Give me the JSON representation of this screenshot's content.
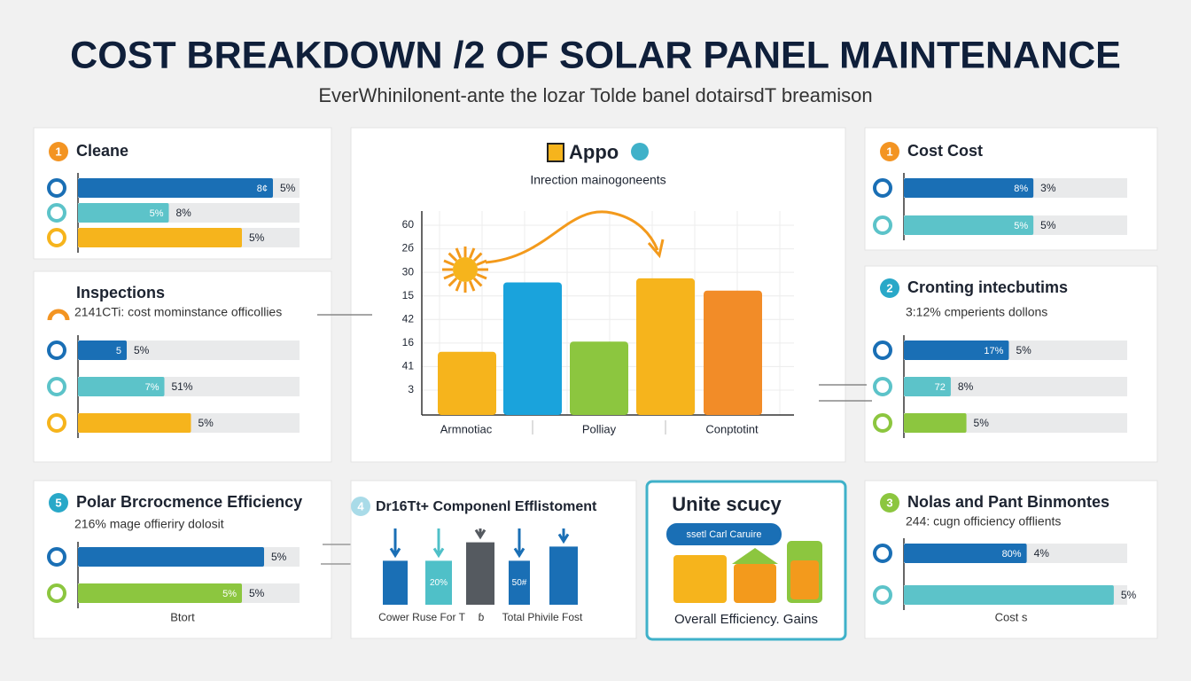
{
  "title": "COST BREAKDOWN /2 OF SOLAR PANEL MAINTENANCE",
  "subtitle": "EverWhinilonent-ante the lozar Tolde banel dotairsdT breamison",
  "panels": [
    {
      "badge": "1",
      "badge_color": "#f39422",
      "title": "Cleane",
      "bars": [
        {
          "value": 88,
          "color": "#1a6fb5",
          "inner": "8¢",
          "label": "5%"
        },
        {
          "value": 41,
          "color": "#5cc3c9",
          "inner": "5%",
          "label": "8%"
        },
        {
          "value": 74,
          "color": "#f6b41c",
          "label": "5%"
        }
      ]
    },
    {
      "title": "Inspections",
      "subtitle": "2141CTi: cost mominstance officollies",
      "bars": [
        {
          "value": 22,
          "color": "#1a6fb5",
          "inner": "5",
          "label": "5%"
        },
        {
          "value": 39,
          "color": "#5cc3c9",
          "inner": "7%",
          "label": "51%"
        },
        {
          "value": 51,
          "color": "#f6b41c",
          "label": "5%"
        }
      ]
    },
    {
      "badge": "5",
      "badge_color": "#29a8c8",
      "title": "Polar Brcrocmence Efficiency",
      "subtitle": "216% mage offieriry dolosit",
      "bars": [
        {
          "value": 84,
          "color": "#1a6fb5",
          "label": "5%"
        },
        {
          "value": 74,
          "color": "#8cc63f",
          "inner": "5%",
          "label": "5%"
        }
      ],
      "footer": "Btort"
    },
    {
      "badge": "1",
      "badge_color": "#f39422",
      "title": "Cost Cost",
      "bars": [
        {
          "value": 58,
          "color": "#1a6fb5",
          "inner": "8%",
          "label": "3%"
        },
        {
          "value": 58,
          "color": "#5cc3c9",
          "inner": "5%",
          "label": "5%"
        }
      ]
    },
    {
      "badge": "2",
      "badge_color": "#29a8c8",
      "title": "Cronting intecbutims",
      "subtitle": "3:12% cmperients dollons",
      "bars": [
        {
          "value": 47,
          "color": "#1a6fb5",
          "inner": "17%",
          "label": "5%"
        },
        {
          "value": 21,
          "color": "#5cc3c9",
          "inner": "72",
          "label": "8%"
        },
        {
          "value": 28,
          "color": "#8cc63f",
          "label": "5%"
        }
      ]
    },
    {
      "badge": "3",
      "badge_color": "#8cc63f",
      "title": "Nolas and Pant Binmontes",
      "subtitle": "244: cugn officiency offlients",
      "bars": [
        {
          "value": 55,
          "color": "#1a6fb5",
          "inner": "80%",
          "label": "4%"
        },
        {
          "value": 94,
          "color": "#5cc3c9",
          "label": "5%"
        }
      ],
      "footer": "Cost s"
    }
  ],
  "chart": {
    "title": "Appo",
    "subtitle": "Inrection mainogoneents",
    "axis_labels": [
      "60",
      "2б",
      "30",
      "15",
      "42",
      "16",
      "41",
      "3"
    ],
    "categories": [
      "Armnotiac",
      "Polliay",
      "Conptotint"
    ],
    "bars": [
      {
        "value": 31,
        "color": "#f6b41c"
      },
      {
        "value": 65,
        "color": "#1aa3dc"
      },
      {
        "value": 36,
        "color": "#8cc63f"
      },
      {
        "value": 67,
        "color": "#f6b41c"
      },
      {
        "value": 61,
        "color": "#f28c28"
      }
    ]
  },
  "components": {
    "badge": "4",
    "title": "Dr16Tt+ Componenl Efflistoment",
    "bars": [
      {
        "value": 62,
        "color": "#1a6fb5"
      },
      {
        "value": 62,
        "color": "#4fc0c8",
        "inner": "20%"
      },
      {
        "value": 88,
        "color": "#555a60"
      },
      {
        "value": 62,
        "color": "#1a6fb5",
        "inner": "50#"
      },
      {
        "value": 82,
        "color": "#1a6fb5"
      }
    ],
    "labels": [
      "Cower Ruse For T",
      "ɓ",
      "Total Phivile Fost"
    ]
  },
  "gains": {
    "title": "Unite scucy",
    "pill": "ssetl Carl Caruire",
    "footer": "Overall Efficiency. Gains"
  }
}
